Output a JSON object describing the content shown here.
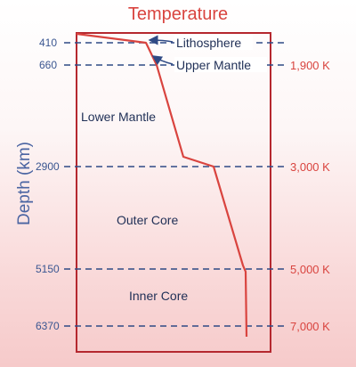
{
  "diagram": {
    "title": "Temperature",
    "y_axis_label": "Depth (km)",
    "depth_ticks": [
      "410",
      "660",
      "2900",
      "5150",
      "6370"
    ],
    "temperature_ticks": [
      "1,900 K",
      "3,000 K",
      "5,000 K",
      "7,000 K"
    ],
    "layers": {
      "lithosphere": "Lithosphere",
      "upper_mantle": "Upper Mantle",
      "lower_mantle": "Lower Mantle",
      "outer_core": "Outer Core",
      "inner_core": "Inner Core"
    },
    "colors": {
      "frame": "#b5282f",
      "curve": "#d9443f",
      "dashed": "#2f4a85",
      "arrow": "#2f4a85"
    }
  }
}
